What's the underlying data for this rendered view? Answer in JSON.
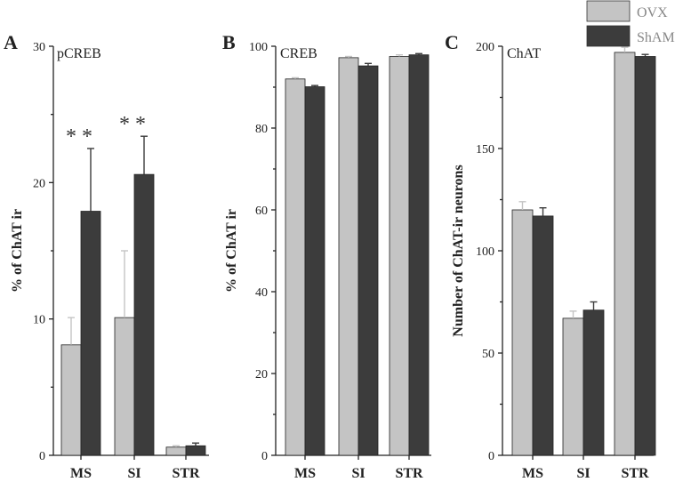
{
  "colors": {
    "OVX": "#c4c4c4",
    "ShAM": "#3c3c3c",
    "axis": "#222222"
  },
  "legend": [
    {
      "name": "OVX",
      "color": "#c4c4c4"
    },
    {
      "name": "ShAM",
      "color": "#3c3c3c"
    }
  ],
  "chart_data": [
    {
      "type": "bar",
      "panel": "A",
      "title": "pCREB",
      "ylabel": "% of ChAT ir",
      "xlabel": "",
      "categories": [
        "MS",
        "SI",
        "STR"
      ],
      "ylim": [
        0,
        30
      ],
      "yticks": [
        0,
        10,
        20,
        30
      ],
      "grid": false,
      "series": [
        {
          "name": "OVX",
          "values": [
            8.1,
            10.1,
            0.6
          ],
          "errors": [
            2.0,
            4.9,
            0.1
          ]
        },
        {
          "name": "ShAM",
          "values": [
            17.9,
            20.6,
            0.7
          ],
          "errors": [
            4.6,
            2.8,
            0.2
          ]
        }
      ],
      "annotations": [
        {
          "category": "MS",
          "series": "ShAM",
          "text": "**"
        },
        {
          "category": "SI",
          "series": "ShAM",
          "text": "**"
        }
      ]
    },
    {
      "type": "bar",
      "panel": "B",
      "title": "CREB",
      "ylabel": "% of ChAT ir",
      "xlabel": "",
      "categories": [
        "MS",
        "SI",
        "STR"
      ],
      "ylim": [
        0,
        100
      ],
      "yticks": [
        0,
        20,
        40,
        60,
        80,
        100
      ],
      "grid": false,
      "series": [
        {
          "name": "OVX",
          "values": [
            92,
            97.2,
            97.5
          ],
          "errors": [
            0.3,
            0.3,
            0.4
          ]
        },
        {
          "name": "ShAM",
          "values": [
            90.1,
            95.2,
            97.9
          ],
          "errors": [
            0.3,
            0.6,
            0.3
          ]
        }
      ]
    },
    {
      "type": "bar",
      "panel": "C",
      "title": "ChAT",
      "ylabel": "Number of ChAT-ir neurons",
      "xlabel": "",
      "categories": [
        "MS",
        "SI",
        "STR"
      ],
      "ylim": [
        0,
        200
      ],
      "yticks": [
        0,
        50,
        100,
        150,
        200
      ],
      "grid": false,
      "legend_position": "top-right",
      "series": [
        {
          "name": "OVX",
          "values": [
            120,
            67,
            197
          ],
          "errors": [
            4,
            3.5,
            2.5
          ]
        },
        {
          "name": "ShAM",
          "values": [
            117,
            71,
            195
          ],
          "errors": [
            4,
            4,
            1
          ]
        }
      ]
    }
  ]
}
